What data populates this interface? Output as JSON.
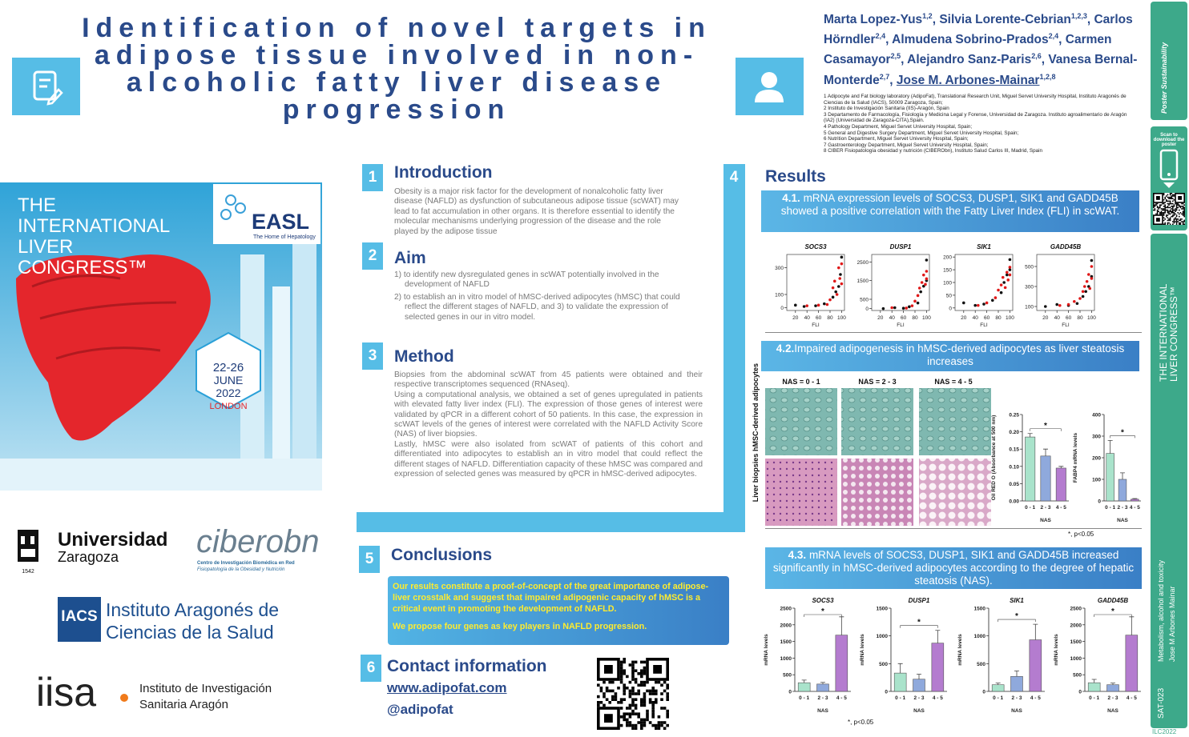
{
  "title": "Identification of novel targets in adipose tissue involved in non-alcoholic fatty liver disease progression",
  "authors": [
    {
      "name": "Marta Lopez-Yus",
      "affil": "1,2"
    },
    {
      "name": "Silvia Lorente-Cebrian",
      "affil": "1,2,3"
    },
    {
      "name": "Carlos Hörndler",
      "affil": "2,4"
    },
    {
      "name": "Almudena Sobrino-Prados",
      "affil": "2,4"
    },
    {
      "name": "Carmen Casamayor",
      "affil": "2,5"
    },
    {
      "name": "Alejandro Sanz-Paris",
      "affil": "2,6"
    },
    {
      "name": "Vanesa Bernal-Monterde",
      "affil": "2,7"
    },
    {
      "name": "Jose M. Arbones-Mainar",
      "affil": "1,2,8"
    }
  ],
  "affiliations": [
    "1 Adipocyte and Fat biology laboratory (AdipoFat), Translational Research Unit, Miguel Servet University Hospital, Instituto Aragonés de Ciencias de la Salud (IACS), 50009 Zaragoza, Spain;",
    "2 Instituto de Investigación Sanitaria (IIS)-Aragón, Spain",
    "3 Departamento de Farmacología, Fisiología y Medicina Legal y Forense, Universidad de Zaragoza. Instituto agroalimentario de Aragón (IA2) (Universidad de Zaragoza-CITA),Spain.",
    "4 Pathology Department, Miguel Servet University Hospital, Spain;",
    "5 General and Digestive Surgery Department, Miguel Servet University Hospital, Spain;",
    "6 Nutrition Department, Miguel Servet University Hospital, Spain;",
    "7 Gastroenterology Department, Miguel Servet University Hospital, Spain;",
    "8 CIBER Fisiopatología obesidad y nutrición (CIBERObn), Instituto Salud Carlos III, Madrid, Spain"
  ],
  "congress": {
    "line1": "THE",
    "line2": "INTERNATIONAL",
    "line3": "LIVER",
    "line4": "CONGRESS™",
    "easl": "EASL",
    "easl_tagline": "The Home of Hepatology",
    "dates": "22-26",
    "month": "JUNE",
    "year": "2022",
    "city": "LONDON"
  },
  "logos": {
    "unizar1": "Universidad",
    "unizar2": "Zaragoza",
    "unizar_year": "1542",
    "ciber": "ciberobn",
    "ciber_sub1": "Centro de Investigación Biomédica en Red",
    "ciber_sub2": "Fisiopatología de la Obesidad y Nutrición",
    "iacs": "IACS",
    "iacs_name1": "Instituto Aragonés de",
    "iacs_name2": "Ciencias de la Salud",
    "iisa": "iisa",
    "iisa_name1": "Instituto de Investigación",
    "iisa_name2": "Sanitaria Aragón"
  },
  "sections": {
    "introduction": {
      "number": "1",
      "heading": "Introduction",
      "text": "Obesity is a major risk factor for the development of nonalcoholic fatty liver disease (NAFLD) as dysfunction of subcutaneous adipose tissue (scWAT) may lead to fat accumulation in other organs. It is therefore essential to identify the molecular mechanisms underlying progression of the disease and the role played by the adipose tissue"
    },
    "aim": {
      "number": "2",
      "heading": "Aim",
      "items": [
        "1) to identify new dysregulated genes in scWAT potentially involved in the development of NAFLD",
        "2) to establish an in vitro model of hMSC-derived adipocytes (hMSC) that could reflect the different stages of NAFLD, and 3) to validate the expression of selected genes in our in vitro model."
      ]
    },
    "method": {
      "number": "3",
      "heading": "Method",
      "paragraphs": [
        "Biopsies from the abdominal scWAT from 45 patients were obtained and their respective transcriptomes sequenced (RNAseq).",
        "Using a computational analysis, we obtained a set of genes upregulated in patients with elevated fatty liver index (FLI). The expression of those genes of interest were validated by qPCR in a different cohort of 50 patients. In this case, the expression in scWAT levels of the genes of interest were correlated with the NAFLD Activity Score (NAS) of liver biopsies.",
        "Lastly, hMSC were also isolated from scWAT of patients of this cohort and differentiated into adipocytes to establish an in vitro model that could reflect the different stages of NAFLD. Differentiation capacity of these hMSC was compared and expression of selected genes was measured by qPCR in hMSC-derived adipocytes."
      ]
    },
    "results": {
      "number": "4",
      "heading": "Results",
      "r1": {
        "label": "4.1.",
        "text": "mRNA expression levels of SOCS3, DUSP1, SIK1 and GADD45B showed a positive correlation with the Fatty Liver Index (FLI) in scWAT."
      },
      "r2": {
        "label": "4.2.",
        "text": "Impaired adipogenesis in hMSC-derived adipocytes as liver steatosis increases"
      },
      "r3": {
        "label": "4.3.",
        "text": "mRNA levels of SOCS3, DUSP1, SIK1 and GADD45B increased significantly in hMSC-derived adipocytes according to the degree of hepatic steatosis (NAS)."
      },
      "nas_labels": [
        "NAS = 0 - 1",
        "NAS = 2 - 3",
        "NAS = 4 - 5"
      ],
      "row_labels": [
        "hMSC-derived adipocytes",
        "Liver biopsies"
      ],
      "note1": "*, p<0.05",
      "note2": "*, p<0.05"
    },
    "conclusions": {
      "number": "5",
      "heading": "Conclusions",
      "paragraphs": [
        "Our results constitute a proof-of-concept of the great importance of adipose-liver crosstalk and suggest that impaired adipogenic capacity of hMSC is a critical event in promoting the development of NAFLD.",
        "We propose four genes as key players in NAFLD progression."
      ]
    },
    "contact": {
      "number": "6",
      "heading": "Contact information",
      "website": "www.adipofat.com",
      "handle": "@adipofat"
    }
  },
  "sidebar": {
    "brand1": "Poster",
    "brand2": "Sustainability",
    "scan": "Scan to download the poster",
    "congress": "THE INTERNATIONAL LIVER CONGRESS™",
    "topic": "Metabolism, alcohol and toxicity",
    "author": "Jose M Arbones Mainar",
    "code": "SAT-023",
    "event": "ILC2022"
  },
  "chart_data": [
    {
      "type": "scatter",
      "title": "SOCS3",
      "xlabel": "FLI",
      "xlim": [
        5,
        105
      ],
      "xticks": [
        20,
        40,
        60,
        80,
        100
      ],
      "ylim": [
        -20,
        400
      ],
      "yticks": [
        0,
        100,
        300
      ],
      "series": [
        {
          "color": "#111111",
          "x": [
            20,
            35,
            55,
            70,
            85,
            90,
            95,
            98,
            100
          ],
          "values": [
            20,
            10,
            15,
            30,
            80,
            120,
            160,
            250,
            380
          ]
        },
        {
          "color": "#e01818",
          "x": [
            40,
            60,
            75,
            80,
            85,
            88,
            92,
            95,
            97,
            100,
            100
          ],
          "values": [
            15,
            20,
            25,
            60,
            150,
            200,
            100,
            300,
            220,
            180,
            330
          ]
        }
      ]
    },
    {
      "type": "scatter",
      "title": "DUSP1",
      "xlabel": "FLI",
      "xlim": [
        5,
        105
      ],
      "xticks": [
        20,
        40,
        60,
        80,
        100
      ],
      "ylim": [
        -100,
        2900
      ],
      "yticks": [
        0,
        500,
        1500,
        2500
      ],
      "series": [
        {
          "color": "#111111",
          "x": [
            25,
            45,
            60,
            70,
            85,
            90,
            95,
            100,
            100
          ],
          "values": [
            0,
            50,
            20,
            100,
            300,
            900,
            1200,
            1500,
            2600
          ]
        },
        {
          "color": "#e01818",
          "x": [
            40,
            65,
            75,
            80,
            85,
            88,
            92,
            95,
            98,
            100,
            100
          ],
          "values": [
            50,
            30,
            150,
            400,
            700,
            1100,
            1400,
            1800,
            1300,
            2000,
            1600
          ]
        }
      ]
    },
    {
      "type": "scatter",
      "title": "SIK1",
      "xlabel": "FLI",
      "xlim": [
        5,
        105
      ],
      "xticks": [
        20,
        40,
        60,
        80,
        100
      ],
      "ylim": [
        -10,
        210
      ],
      "yticks": [
        0,
        50,
        100,
        150,
        200
      ],
      "series": [
        {
          "color": "#111111",
          "x": [
            20,
            40,
            55,
            70,
            85,
            90,
            95,
            100,
            100
          ],
          "values": [
            20,
            10,
            15,
            30,
            60,
            100,
            130,
            150,
            190
          ]
        },
        {
          "color": "#e01818",
          "x": [
            45,
            60,
            75,
            80,
            85,
            88,
            92,
            95,
            97,
            100,
            100
          ],
          "values": [
            10,
            20,
            40,
            70,
            90,
            120,
            80,
            140,
            110,
            160,
            130
          ]
        }
      ]
    },
    {
      "type": "scatter",
      "title": "GADD45B",
      "xlabel": "FLI",
      "xlim": [
        5,
        105
      ],
      "xticks": [
        20,
        40,
        60,
        80,
        100
      ],
      "ylim": [
        60,
        620
      ],
      "yticks": [
        100,
        300,
        500
      ],
      "series": [
        {
          "color": "#111111",
          "x": [
            20,
            40,
            60,
            75,
            85,
            90,
            95,
            100,
            100
          ],
          "values": [
            100,
            120,
            110,
            130,
            200,
            250,
            300,
            400,
            560
          ]
        },
        {
          "color": "#e01818",
          "x": [
            45,
            60,
            70,
            80,
            85,
            88,
            92,
            95,
            97,
            100,
            100
          ],
          "values": [
            110,
            120,
            150,
            180,
            250,
            300,
            350,
            420,
            280,
            500,
            380
          ]
        }
      ]
    },
    {
      "type": "bar",
      "ylabel": "Oil RED O (Absorbance at 500 nm)",
      "xlabel": "NAS",
      "categories": [
        "0 - 1",
        "2 - 3",
        "4 - 5"
      ],
      "values": [
        0.185,
        0.13,
        0.095
      ],
      "errors": [
        0.01,
        0.02,
        0.005
      ],
      "colors": [
        "#a9e3cb",
        "#8fa9dc",
        "#b47ccf"
      ],
      "annotation": "*",
      "ylim": [
        0,
        0.25
      ],
      "yticks": [
        {
          "value": 0,
          "label": "0.00"
        },
        {
          "value": 0.05,
          "label": "0.05"
        },
        {
          "value": 0.1,
          "label": "0.10"
        },
        {
          "value": 0.15,
          "label": "0.15"
        },
        {
          "value": 0.2,
          "label": "0.20"
        },
        {
          "value": 0.25,
          "label": "0.25"
        }
      ]
    },
    {
      "type": "bar",
      "ylabel": "FABP4 mRNA levels",
      "xlabel": "NAS",
      "categories": [
        "0 - 1",
        "2 - 3",
        "4 - 5"
      ],
      "values": [
        220,
        100,
        8
      ],
      "errors": [
        60,
        30,
        3
      ],
      "colors": [
        "#a9e3cb",
        "#8fa9dc",
        "#b47ccf"
      ],
      "annotation": "*",
      "ylim": [
        0,
        400
      ],
      "yticks": [
        0,
        100,
        200,
        300,
        400
      ]
    },
    {
      "type": "bar",
      "title": "SOCS3",
      "ylabel": "mRNA levels",
      "xlabel": "NAS",
      "categories": [
        "0 - 1",
        "2 - 3",
        "4 - 5"
      ],
      "values": [
        260,
        220,
        1690
      ],
      "errors": [
        80,
        50,
        550
      ],
      "colors": [
        "#a9e3cb",
        "#8fa9dc",
        "#b47ccf"
      ],
      "annotation": "*",
      "ylim": [
        0,
        2500
      ],
      "yticks": [
        0,
        500,
        1000,
        1500,
        2000,
        2500
      ]
    },
    {
      "type": "bar",
      "title": "DUSP1",
      "ylabel": "mRNA levels",
      "xlabel": "NAS",
      "categories": [
        "0 - 1",
        "2 - 3",
        "4 - 5"
      ],
      "values": [
        330,
        220,
        870
      ],
      "errors": [
        170,
        90,
        230
      ],
      "colors": [
        "#a9e3cb",
        "#8fa9dc",
        "#b47ccf"
      ],
      "annotation": "*",
      "ylim": [
        0,
        1500
      ],
      "yticks": [
        0,
        500,
        1000,
        1500
      ]
    },
    {
      "type": "bar",
      "title": "SIK1",
      "ylabel": "mRNA levels",
      "xlabel": "NAS",
      "categories": [
        "0 - 1",
        "2 - 3",
        "4 - 5"
      ],
      "values": [
        120,
        270,
        930
      ],
      "errors": [
        30,
        100,
        280
      ],
      "colors": [
        "#a9e3cb",
        "#8fa9dc",
        "#b47ccf"
      ],
      "annotation": "*",
      "ylim": [
        0,
        1500
      ],
      "yticks": [
        0,
        500,
        1000,
        1500
      ]
    },
    {
      "type": "bar",
      "title": "GADD45B",
      "ylabel": "mRNA levels",
      "xlabel": "NAS",
      "categories": [
        "0 - 1",
        "2 - 3",
        "4 - 5"
      ],
      "values": [
        260,
        200,
        1690
      ],
      "errors": [
        100,
        50,
        550
      ],
      "colors": [
        "#a9e3cb",
        "#8fa9dc",
        "#b47ccf"
      ],
      "annotation": "*",
      "ylim": [
        0,
        2500
      ],
      "yticks": [
        0,
        500,
        1000,
        1500,
        2000,
        2500
      ]
    }
  ]
}
